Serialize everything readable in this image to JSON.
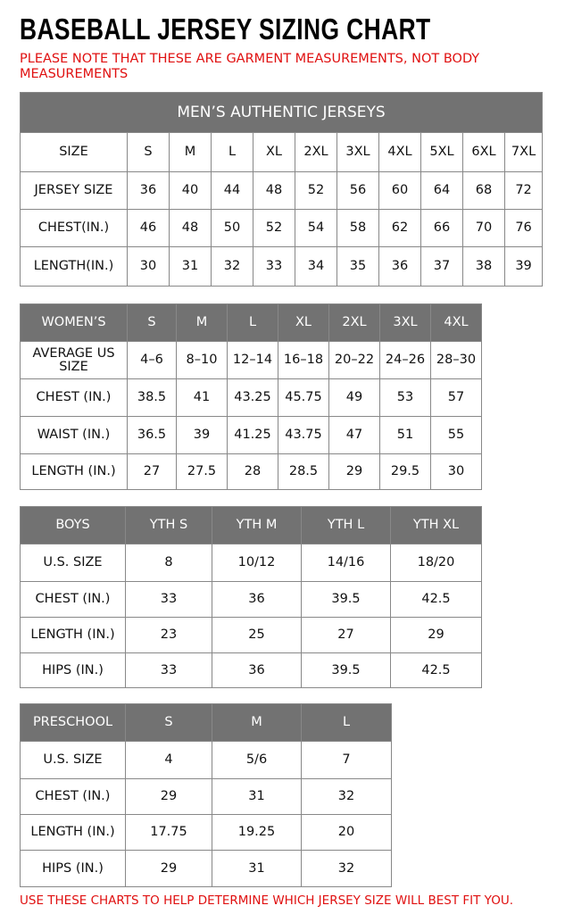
{
  "title": "BASEBALL JERSEY SIZING CHART",
  "note": "PLEASE NOTE THAT THESE ARE GARMENT MEASUREMENTS, NOT BODY MEASUREMENTS",
  "tables": [
    {
      "caption": "MEN’S AUTHENTIC JERSEYS",
      "header": [
        "SIZE",
        "S",
        "M",
        "L",
        "XL",
        "2XL",
        "3XL",
        "4XL",
        "5XL",
        "6XL",
        "7XL"
      ],
      "rows": [
        [
          "JERSEY SIZE",
          "36",
          "40",
          "44",
          "48",
          "52",
          "56",
          "60",
          "64",
          "68",
          "72"
        ],
        [
          "CHEST(IN.)",
          "46",
          "48",
          "50",
          "52",
          "54",
          "58",
          "62",
          "66",
          "70",
          "76"
        ],
        [
          "LENGTH(IN.)",
          "30",
          "31",
          "32",
          "33",
          "34",
          "35",
          "36",
          "37",
          "38",
          "39"
        ]
      ]
    },
    {
      "header": [
        "WOMEN’S",
        "S",
        "M",
        "L",
        "XL",
        "2XL",
        "3XL",
        "4XL"
      ],
      "rows": [
        [
          "AVERAGE US SIZE",
          "4–6",
          "8–10",
          "12–14",
          "16–18",
          "20–22",
          "24–26",
          "28–30"
        ],
        [
          "CHEST (IN.)",
          "38.5",
          "41",
          "43.25",
          "45.75",
          "49",
          "53",
          "57"
        ],
        [
          "WAIST (IN.)",
          "36.5",
          "39",
          "41.25",
          "43.75",
          "47",
          "51",
          "55"
        ],
        [
          "LENGTH (IN.)",
          "27",
          "27.5",
          "28",
          "28.5",
          "29",
          "29.5",
          "30"
        ]
      ]
    },
    {
      "header": [
        "BOYS",
        "YTH S",
        "YTH M",
        "YTH L",
        "YTH XL"
      ],
      "rows": [
        [
          "U.S. SIZE",
          "8",
          "10/12",
          "14/16",
          "18/20"
        ],
        [
          "CHEST (IN.)",
          "33",
          "36",
          "39.5",
          "42.5"
        ],
        [
          "LENGTH (IN.)",
          "23",
          "25",
          "27",
          "29"
        ],
        [
          "HIPS (IN.)",
          "33",
          "36",
          "39.5",
          "42.5"
        ]
      ]
    },
    {
      "header": [
        "PRESCHOOL",
        "S",
        "M",
        "L"
      ],
      "rows": [
        [
          "U.S. SIZE",
          "4",
          "5/6",
          "7"
        ],
        [
          "CHEST (IN.)",
          "29",
          "31",
          "32"
        ],
        [
          "LENGTH (IN.)",
          "17.75",
          "19.25",
          "20"
        ],
        [
          "HIPS (IN.)",
          "29",
          "31",
          "32"
        ]
      ]
    }
  ],
  "footer": "USE THESE CHARTS TO HELP DETERMINE WHICH JERSEY SIZE WILL BEST FIT YOU."
}
